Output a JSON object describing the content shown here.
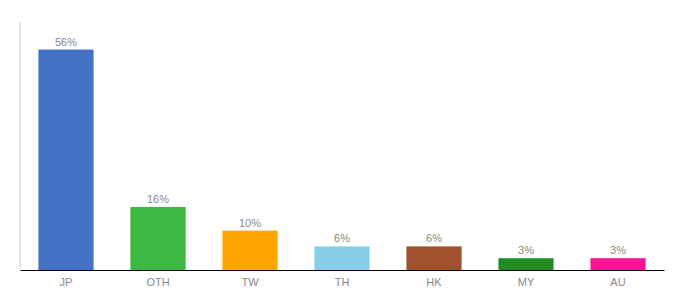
{
  "chart_data": {
    "type": "bar",
    "categories": [
      "JP",
      "OTH",
      "TW",
      "TH",
      "HK",
      "MY",
      "AU"
    ],
    "values": [
      56,
      16,
      10,
      6,
      6,
      3,
      3
    ],
    "value_labels": [
      "56%",
      "16%",
      "10%",
      "6%",
      "6%",
      "3%",
      "3%"
    ],
    "colors": [
      "#4472C4",
      "#3CB843",
      "#FFA500",
      "#87CEEB",
      "#A0522D",
      "#228B22",
      "#FF1493"
    ],
    "ylim": [
      0,
      63
    ],
    "data_labels": true,
    "tick_labels": "x",
    "grid": false
  }
}
